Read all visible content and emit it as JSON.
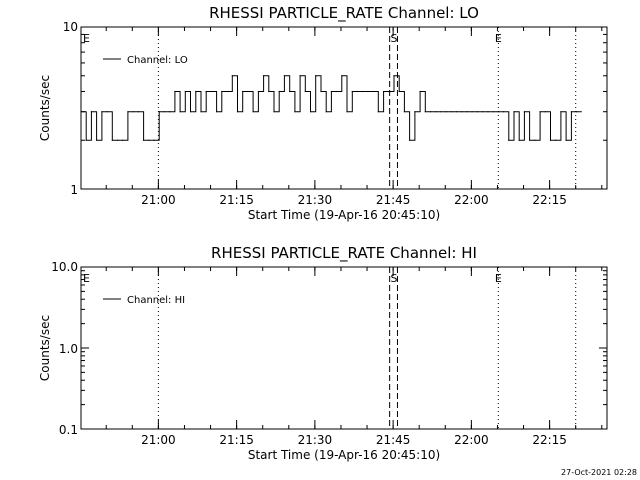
{
  "chart_data": [
    {
      "type": "line",
      "title": "RHESSI PARTICLE_RATE Channel: LO",
      "xlabel": "Start Time (19-Apr-16 20:45:10)",
      "ylabel": "Counts/sec",
      "y_scale": "log",
      "ylim": [
        1,
        10
      ],
      "yticks": [
        "1",
        "10"
      ],
      "x_unit": "time of day",
      "xlim": [
        "20:45:10",
        "22:26:00"
      ],
      "xticks": [
        "21:00",
        "21:15",
        "21:30",
        "21:45",
        "22:00",
        "22:15"
      ],
      "legend_position": "top-left",
      "series": [
        {
          "name": "Channel: LO",
          "color": "#000000",
          "x": [
            "20:45:10",
            "20:46:10",
            "20:47:10",
            "20:48:10",
            "20:49:10",
            "20:50:10",
            "20:51:10",
            "20:52:10",
            "20:53:10",
            "20:54:10",
            "20:55:10",
            "20:56:10",
            "20:57:10",
            "20:58:10",
            "20:59:10",
            "21:00:10",
            "21:01:10",
            "21:02:10",
            "21:03:10",
            "21:04:10",
            "21:05:10",
            "21:06:10",
            "21:07:10",
            "21:08:10",
            "21:09:10",
            "21:10:10",
            "21:11:10",
            "21:12:10",
            "21:13:10",
            "21:14:10",
            "21:15:10",
            "21:16:10",
            "21:17:10",
            "21:18:10",
            "21:19:10",
            "21:20:10",
            "21:21:10",
            "21:22:10",
            "21:23:10",
            "21:24:10",
            "21:25:10",
            "21:26:10",
            "21:27:10",
            "21:28:10",
            "21:29:10",
            "21:30:10",
            "21:31:10",
            "21:32:10",
            "21:33:10",
            "21:34:10",
            "21:35:10",
            "21:36:10",
            "21:37:10",
            "21:38:10",
            "21:39:10",
            "21:40:10",
            "21:41:10",
            "21:42:10",
            "21:43:10",
            "21:44:10",
            "21:45:10",
            "21:46:10",
            "21:47:10",
            "21:48:10",
            "21:49:10",
            "21:50:10",
            "21:51:10",
            "21:52:10",
            "21:53:10",
            "21:54:10",
            "21:55:10",
            "21:56:10",
            "21:57:10",
            "21:58:10",
            "21:59:10",
            "22:00:10",
            "22:01:10",
            "22:02:10",
            "22:03:10",
            "22:04:10",
            "22:05:10",
            "22:06:10",
            "22:07:10",
            "22:08:10",
            "22:09:10",
            "22:10:10",
            "22:11:10",
            "22:12:10",
            "22:13:10",
            "22:14:10",
            "22:15:10",
            "22:16:10",
            "22:17:10",
            "22:18:10",
            "22:19:10",
            "22:20:10"
          ],
          "values": [
            3,
            2,
            3,
            2,
            3,
            3,
            2,
            2,
            2,
            3,
            3,
            3,
            2,
            2,
            2,
            3,
            3,
            3,
            4,
            3,
            4,
            3,
            4,
            3,
            4,
            4,
            3,
            4,
            4,
            5,
            3,
            4,
            4,
            3,
            4,
            5,
            4,
            3,
            4,
            5,
            4,
            3,
            5,
            4,
            3,
            5,
            4,
            3,
            4,
            4,
            5,
            3,
            4,
            4,
            4,
            4,
            4,
            3,
            4,
            4,
            5,
            4,
            3,
            2,
            3,
            4,
            3,
            3,
            3,
            3,
            3,
            3,
            3,
            3,
            3,
            3,
            3,
            3,
            3,
            3,
            3,
            3,
            2,
            3,
            2,
            3,
            2,
            2,
            3,
            3,
            2,
            2,
            3,
            2,
            3,
            3
          ]
        }
      ],
      "markers": [
        {
          "label": "E",
          "time": "20:45:10"
        },
        {
          "label": "S",
          "time": "21:45:10"
        },
        {
          "label": "E",
          "time": "22:05:10"
        }
      ]
    },
    {
      "type": "line",
      "title": "RHESSI PARTICLE_RATE Channel: HI",
      "xlabel": "Start Time (19-Apr-16 20:45:10)",
      "ylabel": "Counts/sec",
      "y_scale": "log",
      "ylim": [
        0.1,
        10
      ],
      "yticks": [
        "0.1",
        "1.0",
        "10.0"
      ],
      "x_unit": "time of day",
      "xlim": [
        "20:45:10",
        "22:26:00"
      ],
      "xticks": [
        "21:00",
        "21:15",
        "21:30",
        "21:45",
        "22:00",
        "22:15"
      ],
      "legend_position": "top-left",
      "series": [
        {
          "name": "Channel: HI",
          "color": "#000000",
          "x": [],
          "values": []
        }
      ],
      "markers": [
        {
          "label": "E",
          "time": "20:45:10"
        },
        {
          "label": "S",
          "time": "21:45:10"
        },
        {
          "label": "E",
          "time": "22:05:10"
        }
      ]
    }
  ],
  "footer": {
    "timestamp": "27-Oct-2021 02:28"
  }
}
